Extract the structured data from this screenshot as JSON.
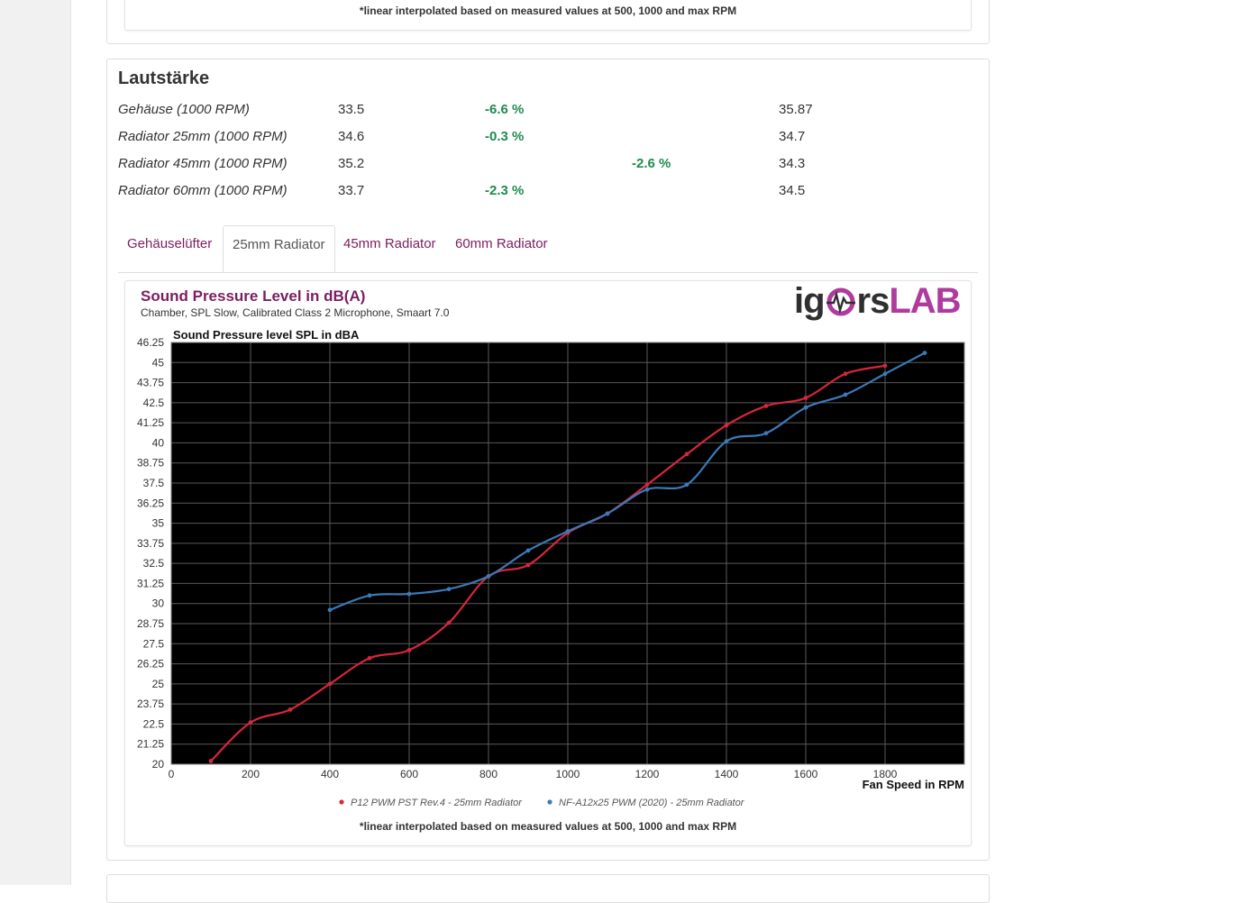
{
  "top_card": {
    "footnote": "*linear interpolated based on measured values at 500, 1000 and max RPM"
  },
  "volume": {
    "title": "Lautstärke",
    "rows": [
      {
        "label": "Gehäuse (1000 RPM)",
        "value": "33.5",
        "delta": "-6.6 %",
        "delta_col": "left",
        "reference": "35.87"
      },
      {
        "label": "Radiator 25mm (1000 RPM)",
        "value": "34.6",
        "delta": "-0.3 %",
        "delta_col": "left",
        "reference": "34.7"
      },
      {
        "label": "Radiator 45mm (1000 RPM)",
        "value": "35.2",
        "delta": "-2.6 %",
        "delta_col": "right",
        "reference": "34.3"
      },
      {
        "label": "Radiator 60mm (1000 RPM)",
        "value": "33.7",
        "delta": "-2.3 %",
        "delta_col": "left",
        "reference": "34.5"
      }
    ],
    "tabs": [
      "Gehäuselüfter",
      "25mm Radiator",
      "45mm Radiator",
      "60mm Radiator"
    ],
    "active_tab": 1
  },
  "chart_card": {
    "title": "Sound Pressure Level in dB(A)",
    "subtitle": "Chamber, SPL Slow, Calibrated Class 2 Microphone, Smaart 7.0",
    "logo_left": "ig",
    "logo_mid": "rs",
    "logo_right": "LAB",
    "footnote": "*linear interpolated based on measured values at 500, 1000 and max RPM"
  },
  "chart_data": {
    "type": "line",
    "title": "Sound Pressure level SPL in dBA",
    "xlabel": "Fan Speed in RPM",
    "ylabel": "",
    "xlim": [
      0,
      2000
    ],
    "ylim": [
      20,
      46.25
    ],
    "x_ticks": [
      0,
      200,
      400,
      600,
      800,
      1000,
      1200,
      1400,
      1600,
      1800
    ],
    "y_ticks": [
      20,
      21.25,
      22.5,
      23.75,
      25,
      26.25,
      27.5,
      28.75,
      30,
      31.25,
      32.5,
      33.75,
      35,
      36.25,
      37.5,
      38.75,
      40,
      41.25,
      42.5,
      43.75,
      45,
      46.25
    ],
    "grid": true,
    "legend_position": "bottom",
    "background": "#000000",
    "series": [
      {
        "name": "P12 PWM PST Rev.4 - 25mm Radiator",
        "color": "#d7263d",
        "x": [
          100,
          200,
          300,
          400,
          500,
          600,
          700,
          800,
          900,
          1000,
          1100,
          1200,
          1300,
          1400,
          1500,
          1600,
          1700,
          1800
        ],
        "y": [
          20.2,
          22.6,
          23.4,
          25.0,
          26.6,
          27.1,
          28.8,
          31.7,
          32.4,
          34.4,
          35.6,
          37.4,
          39.3,
          41.1,
          42.3,
          42.8,
          44.3,
          44.8
        ]
      },
      {
        "name": "NF-A12x25 PWM (2020) - 25mm Radiator",
        "color": "#3a7ab8",
        "x": [
          400,
          500,
          600,
          700,
          800,
          900,
          1000,
          1100,
          1200,
          1300,
          1400,
          1500,
          1600,
          1700,
          1800,
          1900
        ],
        "y": [
          29.6,
          30.5,
          30.6,
          30.9,
          31.7,
          33.3,
          34.5,
          35.6,
          37.1,
          37.4,
          40.1,
          40.6,
          42.2,
          43.0,
          44.3,
          45.6
        ]
      }
    ]
  }
}
